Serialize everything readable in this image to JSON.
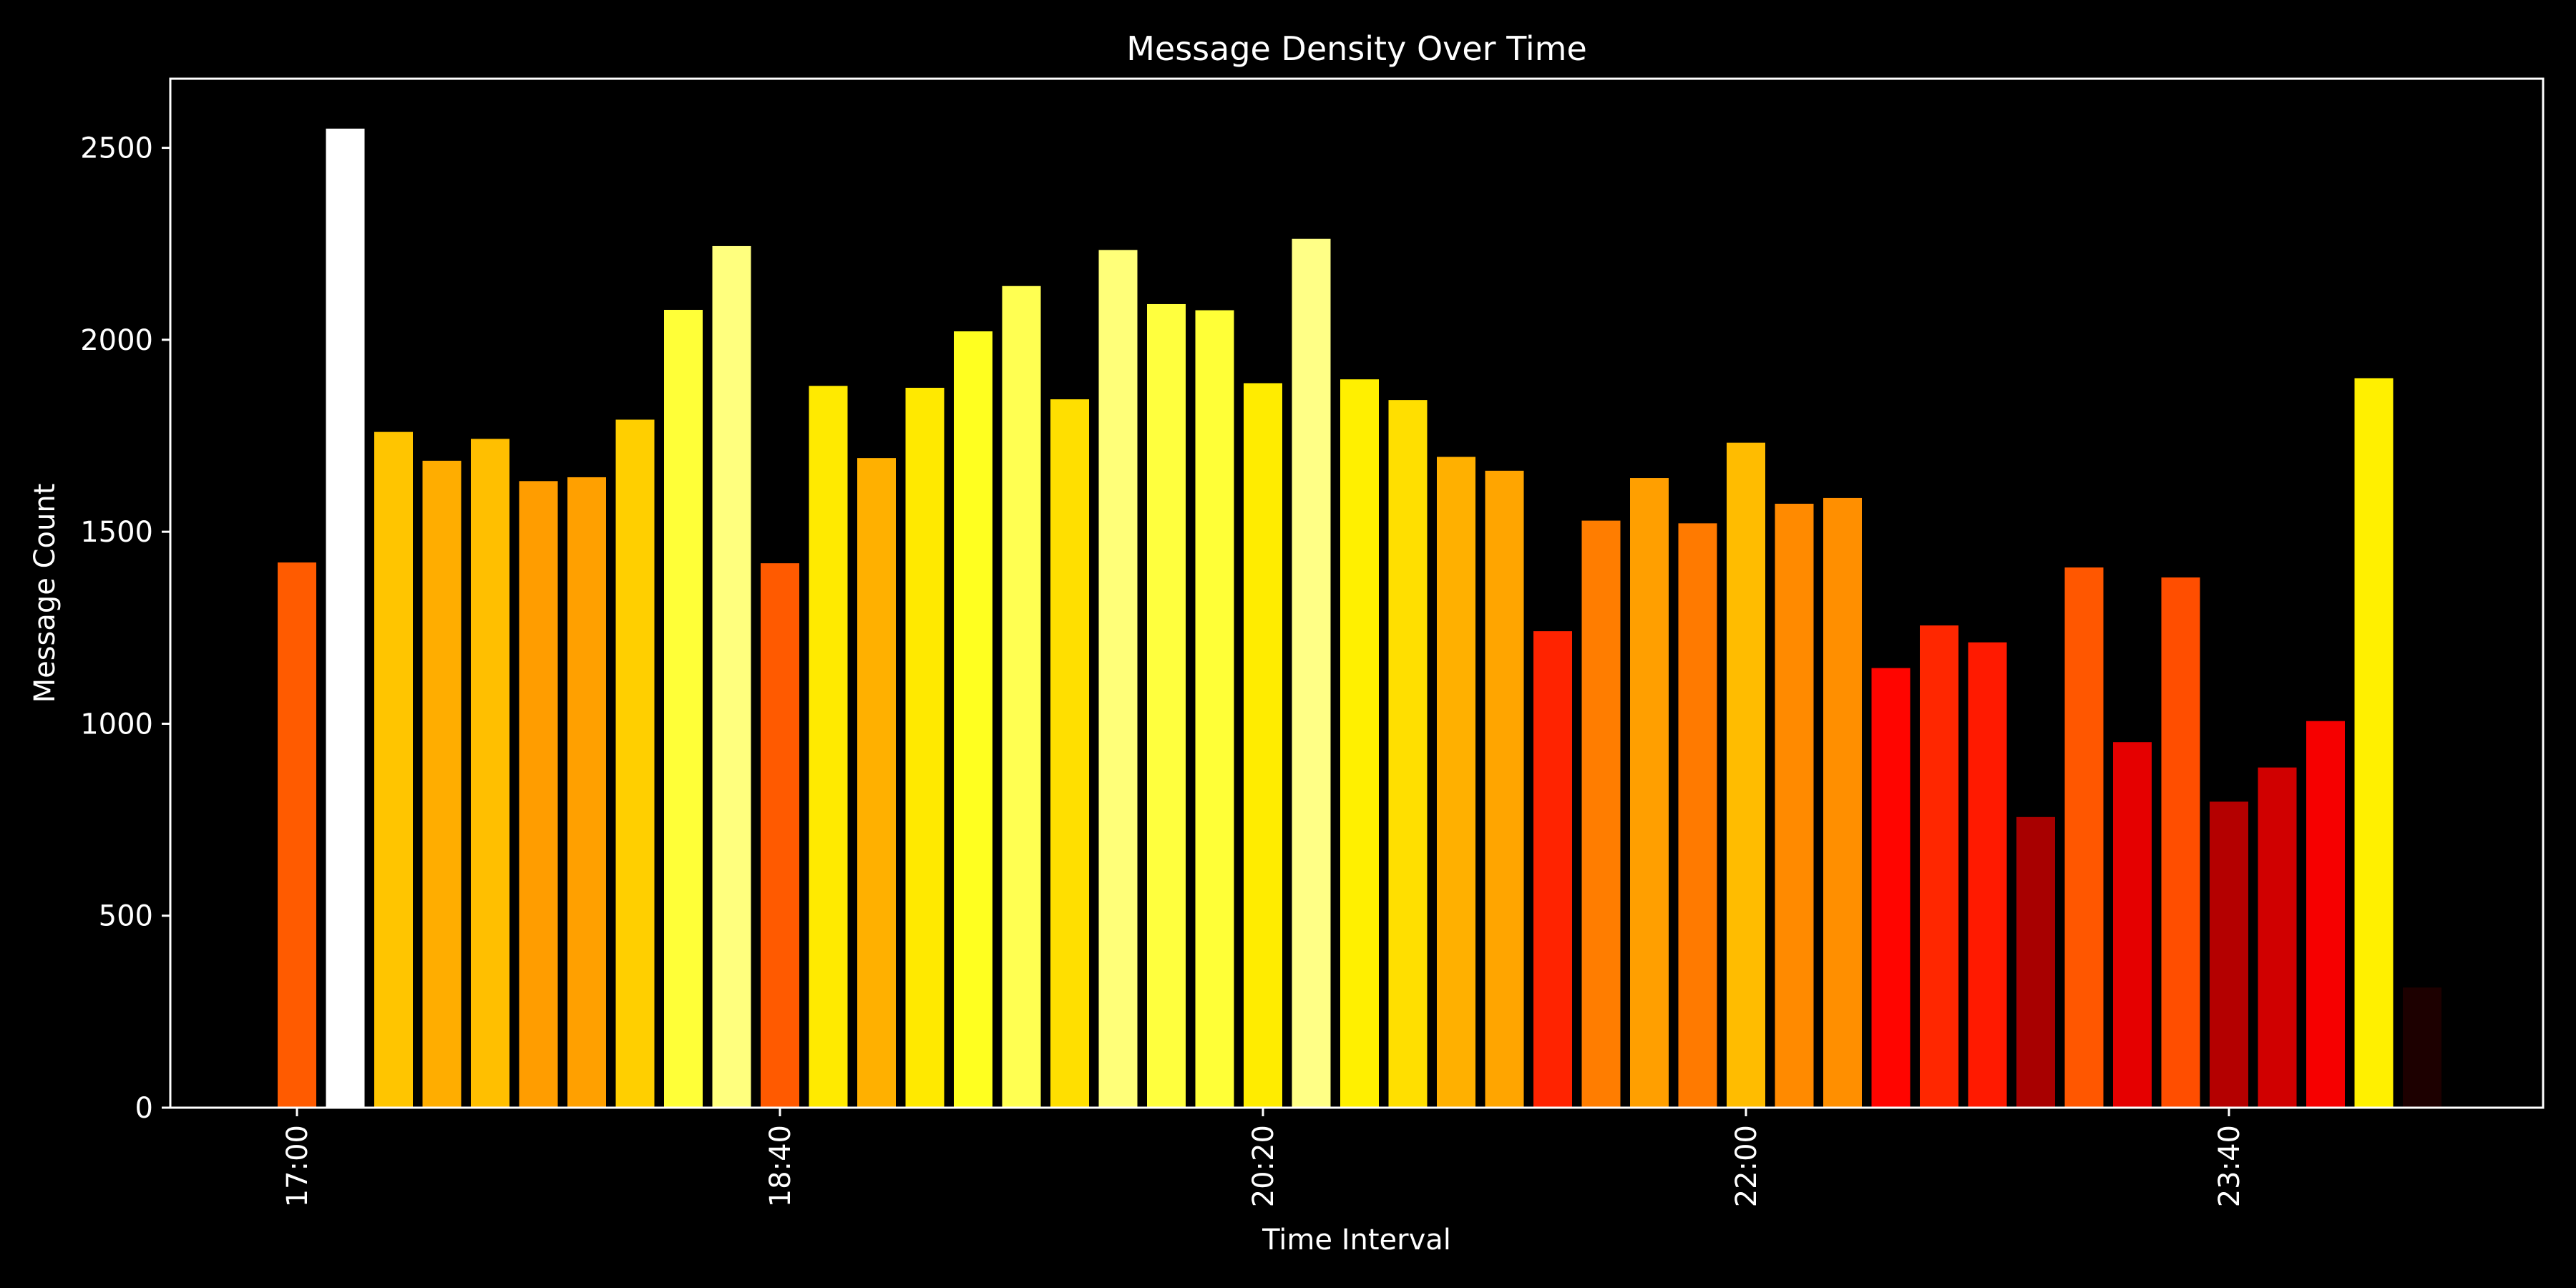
{
  "chart_data": {
    "type": "bar",
    "title": "Message Density Over Time",
    "xlabel": "Time Interval",
    "ylabel": "Message Count",
    "ylim": [
      0,
      2680
    ],
    "grid": false,
    "legend": "none",
    "y_ticks": [
      0,
      500,
      1000,
      1500,
      2000,
      2500
    ],
    "x_tick_labels": [
      {
        "index": 0,
        "label": "17:00"
      },
      {
        "index": 10,
        "label": "18:40"
      },
      {
        "index": 20,
        "label": "20:20"
      },
      {
        "index": 30,
        "label": "22:00"
      },
      {
        "index": 40,
        "label": "23:40"
      }
    ],
    "values": [
      1420,
      2550,
      1760,
      1685,
      1742,
      1632,
      1642,
      1792,
      2078,
      2244,
      1418,
      1880,
      1692,
      1875,
      2022,
      2140,
      1845,
      2234,
      2093,
      2077,
      1887,
      2263,
      1897,
      1843,
      1695,
      1659,
      1241,
      1529,
      1640,
      1522,
      1732,
      1573,
      1588,
      1145,
      1256,
      1212,
      757,
      1407,
      952,
      1381,
      797,
      886,
      1007,
      1900,
      313
    ],
    "colormap": "hot",
    "colors": {
      "background": "#000000",
      "foreground": "#ffffff"
    }
  }
}
